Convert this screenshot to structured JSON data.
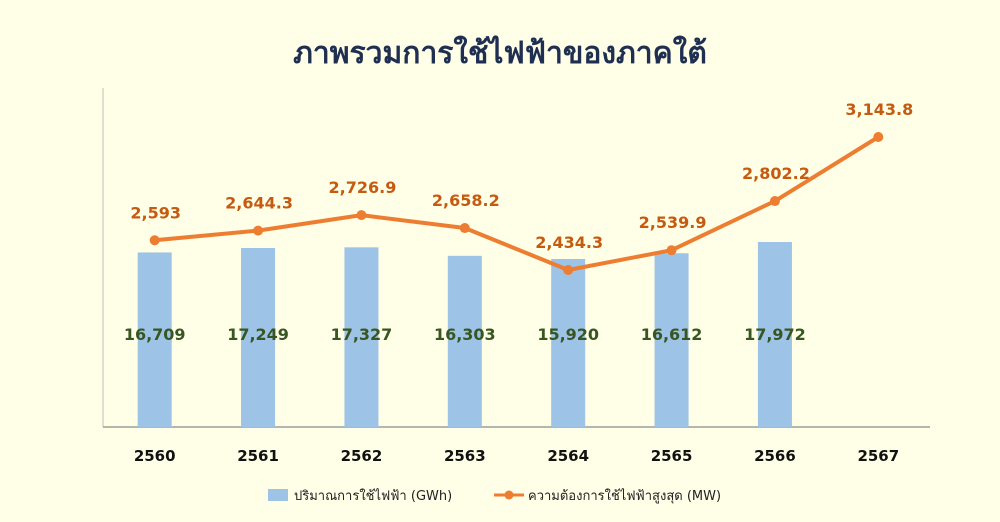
{
  "chart_data": {
    "type": "bar",
    "title": "ภาพรวมการใช้ไฟฟ้าของภาคใต้",
    "categories": [
      "2560",
      "2561",
      "2562",
      "2563",
      "2564",
      "2565",
      "2566",
      "2567"
    ],
    "series": [
      {
        "name": "ปริมาณการใช้ไฟฟ้า (GWh)",
        "type": "bar",
        "color": "#9dc3e6",
        "values": [
          16709,
          17249,
          17327,
          16303,
          15920,
          16612,
          17972,
          null
        ],
        "labels": [
          "16,709",
          "17,249",
          "17,327",
          "16,303",
          "15,920",
          "16,612",
          "17,972",
          ""
        ]
      },
      {
        "name": "ความต้องการใช้ไฟฟ้าสูงสุด (MW)",
        "type": "line",
        "color": "#ed7d31",
        "values": [
          2593,
          2644.3,
          2726.9,
          2658.2,
          2434.3,
          2539.9,
          2802.2,
          3143.8
        ],
        "labels": [
          "2,593",
          "2,644.3",
          "2,726.9",
          "2,658.2",
          "2,434.3",
          "2,539.9",
          "2,802.2",
          "3,143.8"
        ]
      }
    ],
    "legend_position": "bottom",
    "grid": false
  }
}
